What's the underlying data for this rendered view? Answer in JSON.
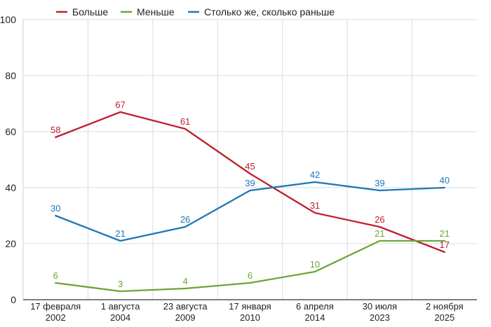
{
  "chart_data": {
    "type": "line",
    "categories": [
      [
        "17 февраля",
        "2002"
      ],
      [
        "1 августа",
        "2004"
      ],
      [
        "23 августа",
        "2009"
      ],
      [
        "17 января",
        "2010"
      ],
      [
        "6 апреля",
        "2014"
      ],
      [
        "30 июля",
        "2023"
      ],
      [
        "2 ноября",
        "2025"
      ]
    ],
    "ylim": [
      0,
      100
    ],
    "yticks": [
      0,
      20,
      40,
      60,
      80,
      100
    ],
    "grid": true,
    "legend_position": "top-left",
    "series": [
      {
        "name": "Больше",
        "color": "#c0202e",
        "values": [
          58,
          67,
          61,
          45,
          31,
          26,
          17
        ]
      },
      {
        "name": "Меньше",
        "color": "#6aa636",
        "values": [
          6,
          3,
          4,
          6,
          10,
          21,
          21
        ]
      },
      {
        "name": "Столько же, сколько раньше",
        "color": "#1f77b4",
        "values": [
          30,
          21,
          26,
          39,
          42,
          39,
          40
        ]
      }
    ]
  }
}
